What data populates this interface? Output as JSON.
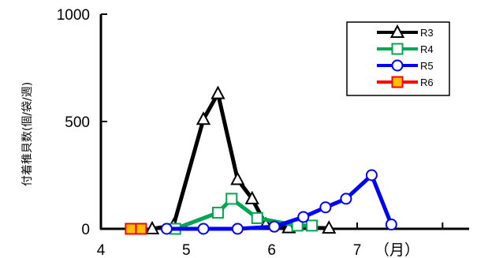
{
  "chart_data": {
    "type": "line",
    "ylabel": "付着稚貝数(個/袋/週)",
    "x_unit_label": "（月）",
    "xlim": [
      4,
      8.4
    ],
    "ylim": [
      0,
      1000
    ],
    "x_ticks": [
      4,
      5,
      6,
      7
    ],
    "x_tick_labels": [
      "4",
      "5",
      "6",
      "7"
    ],
    "y_ticks": [
      0,
      500,
      1000
    ],
    "y_tick_labels": [
      "0",
      "500",
      "1000"
    ],
    "grid": false,
    "legend_position": "top-right",
    "series": [
      {
        "name": "R3",
        "color": "#000000",
        "marker": "triangle",
        "marker_fill": "#ffffff",
        "x": [
          4.6,
          4.85,
          5.2,
          5.37,
          5.6,
          5.77,
          5.93,
          6.2,
          6.67
        ],
        "y": [
          0,
          15,
          510,
          630,
          230,
          140,
          20,
          5,
          3
        ]
      },
      {
        "name": "R4",
        "color": "#00a651",
        "marker": "square",
        "marker_fill": "#ffffff",
        "x": [
          4.87,
          5.37,
          5.53,
          5.83,
          6.3,
          6.47
        ],
        "y": [
          0,
          75,
          140,
          50,
          15,
          15
        ]
      },
      {
        "name": "R5",
        "color": "#0000ff",
        "marker": "circle",
        "marker_fill": "#ffffff",
        "x": [
          4.77,
          5.2,
          5.6,
          6.03,
          6.37,
          6.63,
          6.87,
          7.17,
          7.4
        ],
        "y": [
          0,
          0,
          0,
          10,
          55,
          100,
          140,
          250,
          20
        ]
      },
      {
        "name": "R6",
        "color": "#ff0000",
        "marker": "square",
        "marker_fill": "#ffc000",
        "x": [
          4.35,
          4.47
        ],
        "y": [
          0,
          0
        ]
      }
    ]
  }
}
